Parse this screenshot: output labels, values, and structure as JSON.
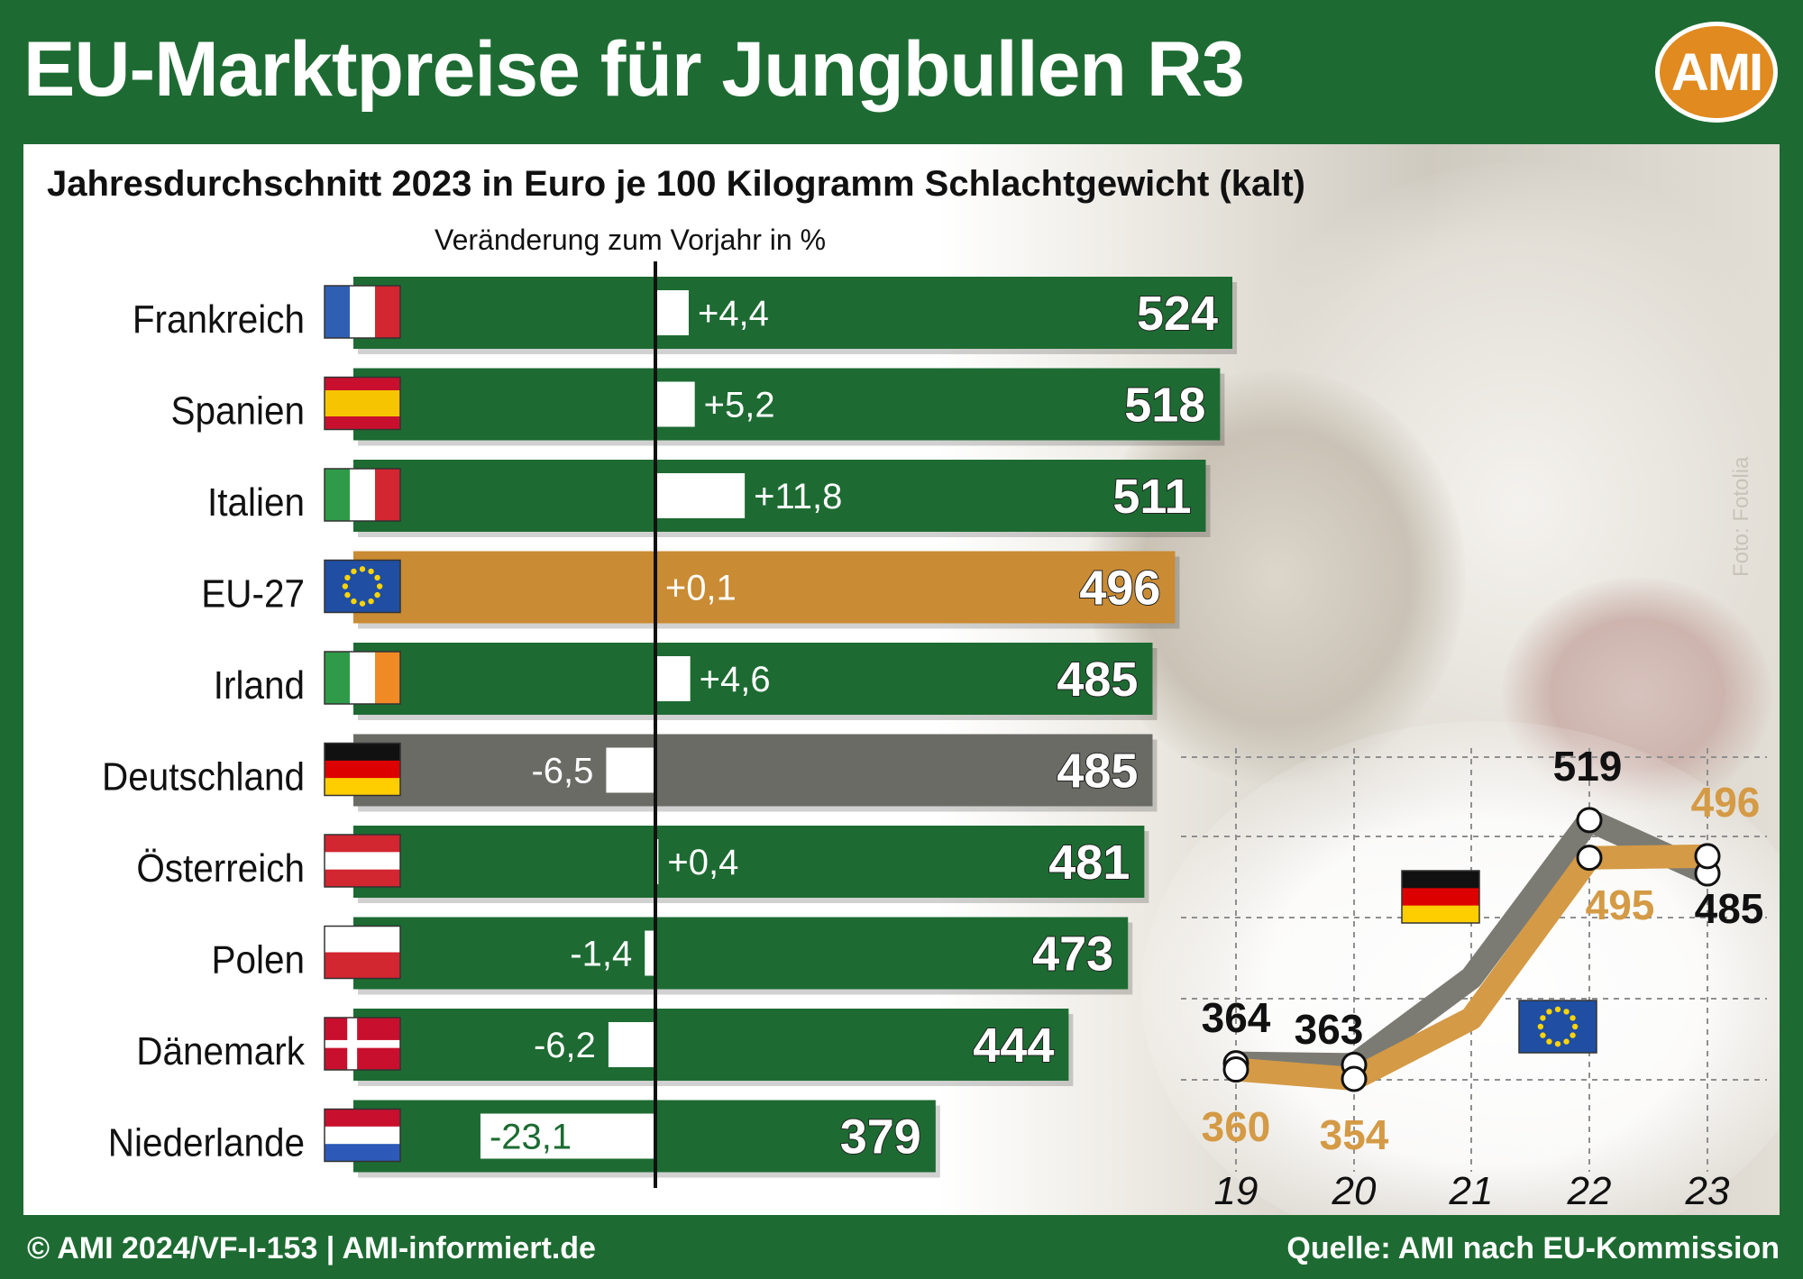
{
  "title": "EU-Marktpreise für Jungbullen R3",
  "logo_text": "AMI",
  "subtitle": "Jahresdurchschnitt 2023 in Euro je 100 Kilogramm Schlachtgewicht (kalt)",
  "change_label": "Veränderung zum Vorjahr in %",
  "photo_credit": "Foto: Fotolia",
  "footer_left": "© AMI 2024/VF-I-153 | AMI-informiert.de",
  "footer_right": "Quelle: AMI nach EU-Kommission",
  "colors": {
    "green": "#1d6b32",
    "eu_orange": "#c98b33",
    "germany_grey": "#6b6b66",
    "line_eu": "#d49a45",
    "line_de": "#7b7b74"
  },
  "chart_data": [
    {
      "type": "bar",
      "orientation": "horizontal",
      "categories": [
        "Frankreich",
        "Spanien",
        "Italien",
        "EU-27",
        "Irland",
        "Deutschland",
        "Österreich",
        "Polen",
        "Dänemark",
        "Niederlande"
      ],
      "flag_icons": [
        "france-flag-icon",
        "spain-flag-icon",
        "italy-flag-icon",
        "eu-flag-icon",
        "ireland-flag-icon",
        "germany-flag-icon",
        "austria-flag-icon",
        "poland-flag-icon",
        "denmark-flag-icon",
        "netherlands-flag-icon"
      ],
      "values": [
        524,
        518,
        511,
        496,
        485,
        485,
        481,
        473,
        444,
        379
      ],
      "value_labels": [
        "524",
        "518",
        "511",
        "496",
        "485",
        "485",
        "481",
        "473",
        "444",
        "379"
      ],
      "change": [
        4.4,
        5.2,
        11.8,
        0.1,
        4.6,
        -6.5,
        0.4,
        -1.4,
        -6.2,
        -23.1
      ],
      "change_labels": [
        "+4,4",
        "+5,2",
        "+11,8",
        "+0,1",
        "+4,6",
        "-6,5",
        "+0,4",
        "-1,4",
        "-6,2",
        "-23,1"
      ],
      "highlight": {
        "EU-27": "eu_orange",
        "Deutschland": "germany_grey"
      }
    },
    {
      "type": "line",
      "x": [
        "19",
        "20",
        "21",
        "22",
        "23"
      ],
      "series": [
        {
          "flag": "germany-flag-icon",
          "values": [
            364,
            363,
            null,
            519,
            485
          ],
          "labels": [
            "364",
            "363",
            "",
            "519",
            "485"
          ]
        },
        {
          "flag": "eu-flag-icon",
          "values": [
            360,
            354,
            null,
            495,
            496
          ],
          "labels": [
            "360",
            "354",
            "",
            "495",
            "496"
          ]
        }
      ],
      "grid": true
    }
  ]
}
